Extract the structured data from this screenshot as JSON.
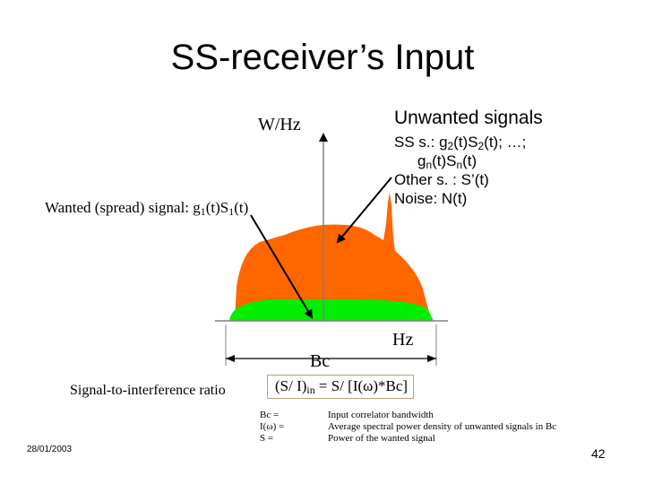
{
  "title": "SS-receiver’s Input",
  "axis": {
    "y_label": "W/Hz",
    "x_label": "Hz",
    "bandwidth_label": "Bc"
  },
  "unwanted": {
    "heading": "Unwanted signals",
    "ss_prefix": "SS s.: g",
    "ss_sub1": "2",
    "ss_mid1": "(t)S",
    "ss_sub2": "2",
    "ss_mid2": "(t); …;",
    "ss2_prefix": "g",
    "ss2_sub1": "n",
    "ss2_mid1": "(t)S",
    "ss2_sub2": "n",
    "ss2_mid2": "(t)",
    "other": "Other s. : S’(t)",
    "noise": "Noise: N(t)"
  },
  "wanted": {
    "prefix": "Wanted (spread) signal: g",
    "sub1": "1",
    "mid": "(t)S",
    "sub2": "1",
    "suffix": "(t)"
  },
  "sir": {
    "label": "Signal-to-interference ratio",
    "formula_prefix": "(S/ I)",
    "formula_sub": "in",
    "formula_suffix": " = S/ [I(ω)*Bc]"
  },
  "definitions": {
    "keys": [
      "Bc =",
      "I(ω) =",
      "S ="
    ],
    "values": [
      "Input correlator bandwidth",
      "Average spectral power density of unwanted signals in Bc",
      "Power of the wanted signal"
    ]
  },
  "footer": {
    "date": "28/01/2003",
    "page": "42"
  },
  "colors": {
    "wanted_signal": "#00ee00",
    "unwanted_signal": "#ff6600",
    "axis": "#808080",
    "box_border": "#c0a080"
  }
}
